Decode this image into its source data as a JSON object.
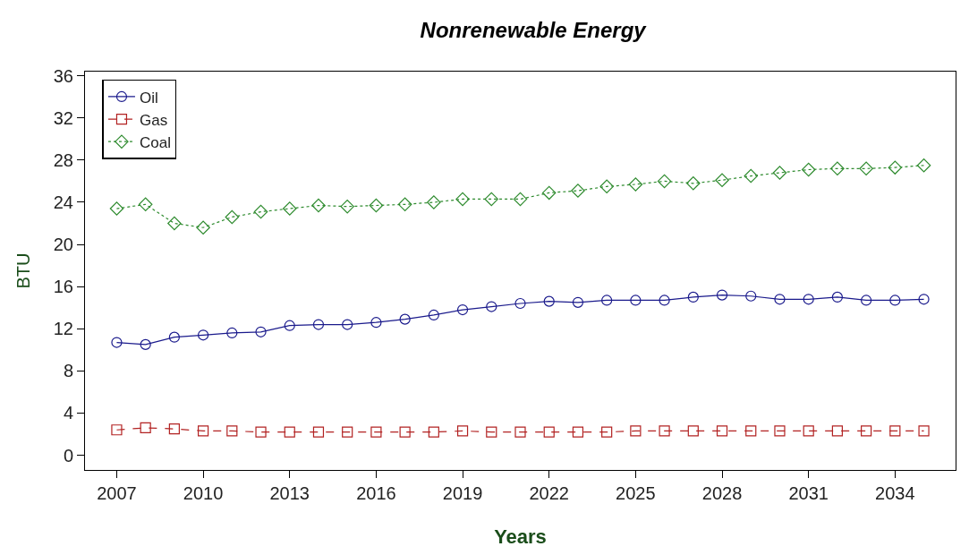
{
  "chart_data": {
    "type": "line",
    "title": "Nonrenewable Energy",
    "xlabel": "Years",
    "ylabel": "BTU",
    "x": [
      2007,
      2008,
      2009,
      2010,
      2011,
      2012,
      2013,
      2014,
      2015,
      2016,
      2017,
      2018,
      2019,
      2020,
      2021,
      2022,
      2023,
      2024,
      2025,
      2026,
      2027,
      2028,
      2029,
      2030,
      2031,
      2032,
      2033,
      2034,
      2035
    ],
    "series": [
      {
        "name": "Oil",
        "color": "#1a1a8c",
        "marker": "circle",
        "line_style": "solid",
        "values": [
          10.7,
          10.5,
          11.2,
          11.4,
          11.6,
          11.7,
          12.3,
          12.4,
          12.4,
          12.6,
          12.9,
          13.3,
          13.8,
          14.1,
          14.4,
          14.6,
          14.5,
          14.7,
          14.7,
          14.7,
          15.0,
          15.2,
          15.1,
          14.8,
          14.8,
          15.0,
          14.7,
          14.7,
          14.8
        ]
      },
      {
        "name": "Gas",
        "color": "#b22222",
        "marker": "square",
        "line_style": "dashed",
        "values": [
          2.4,
          2.6,
          2.5,
          2.3,
          2.3,
          2.2,
          2.2,
          2.2,
          2.2,
          2.2,
          2.2,
          2.2,
          2.3,
          2.2,
          2.2,
          2.2,
          2.2,
          2.2,
          2.3,
          2.3,
          2.3,
          2.3,
          2.3,
          2.3,
          2.3,
          2.3,
          2.3,
          2.3,
          2.3
        ]
      },
      {
        "name": "Coal",
        "color": "#2e8b2e",
        "marker": "diamond",
        "line_style": "dotted",
        "values": [
          23.4,
          23.8,
          22.0,
          21.6,
          22.6,
          23.1,
          23.4,
          23.7,
          23.6,
          23.7,
          23.8,
          24.0,
          24.3,
          24.3,
          24.3,
          24.9,
          25.1,
          25.5,
          25.7,
          26.0,
          25.8,
          26.1,
          26.5,
          26.8,
          27.1,
          27.2,
          27.2,
          27.3,
          27.5
        ]
      }
    ],
    "xlim": [
      2005.9,
      2036.1
    ],
    "xticks": [
      2007,
      2010,
      2013,
      2016,
      2019,
      2022,
      2025,
      2028,
      2031,
      2034
    ],
    "ylim": [
      -1.4,
      36.4
    ],
    "yticks": [
      0,
      4,
      8,
      12,
      16,
      20,
      24,
      28,
      32,
      36
    ],
    "legend": "top left"
  }
}
